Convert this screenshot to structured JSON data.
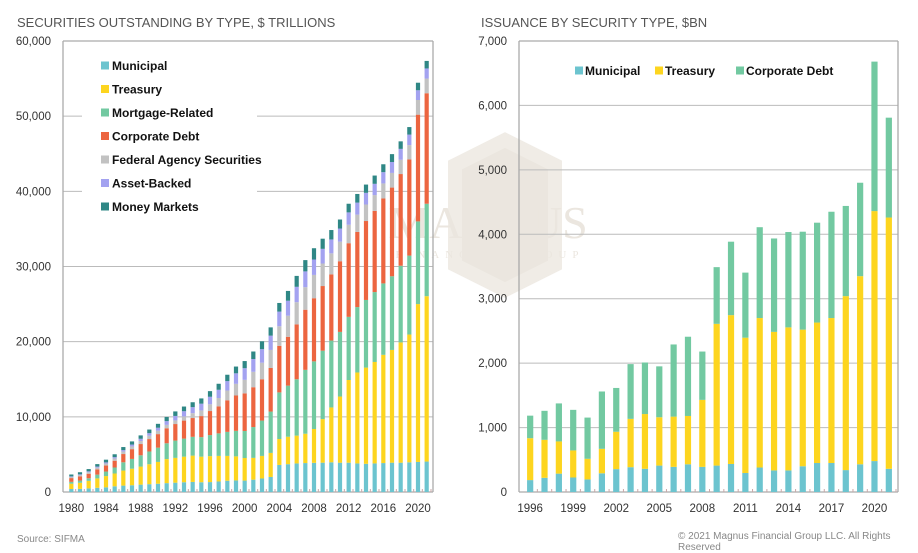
{
  "footer": {
    "source": "Source: SIFMA",
    "copyright": "© 2021 Magnus Financial Group LLC. All Rights Reserved"
  },
  "watermark": {
    "name": "MAGNUS",
    "sub": "FINANCIAL GROUP"
  },
  "colors": {
    "municipal": "#6cc4cf",
    "treasury": "#fdd51f",
    "mortgage": "#72c9a1",
    "corporate": "#ec6540",
    "agency": "#c2c2c2",
    "asset_backed": "#a3a2f0",
    "money_markets": "#2f8785",
    "axis": "#aaaaaa",
    "grid": "#bbbbbb"
  },
  "chart_data": [
    {
      "type": "bar",
      "stacked": true,
      "title": "SECURITIES OUTSTANDING BY TYPE, $ TRILLIONS",
      "xlabel": "",
      "ylabel": "",
      "ylim": [
        0,
        60000
      ],
      "yticks": [
        0,
        10000,
        20000,
        30000,
        40000,
        50000,
        60000
      ],
      "ytick_labels": [
        "0",
        "10,000",
        "20,000",
        "30,000",
        "40,000",
        "50,000",
        "60,000"
      ],
      "xtick_labels": [
        "1980",
        "1984",
        "1988",
        "1992",
        "1996",
        "2000",
        "2004",
        "2008",
        "2012",
        "2016",
        "2020"
      ],
      "grid": true,
      "legend_position": "top-left",
      "categories": [
        "1980",
        "1981",
        "1982",
        "1983",
        "1984",
        "1985",
        "1986",
        "1987",
        "1988",
        "1989",
        "1990",
        "1991",
        "1992",
        "1993",
        "1994",
        "1995",
        "1996",
        "1997",
        "1998",
        "1999",
        "2000",
        "2001",
        "2002",
        "2003",
        "2004",
        "2005",
        "2006",
        "2007",
        "2008",
        "2009",
        "2010",
        "2011",
        "2012",
        "2013",
        "2014",
        "2015",
        "2016",
        "2017",
        "2018",
        "2019",
        "2020",
        "2021"
      ],
      "series": [
        {
          "name": "Municipal",
          "color_key": "municipal",
          "values": [
            400,
            420,
            480,
            560,
            620,
            760,
            850,
            900,
            980,
            1040,
            1100,
            1180,
            1240,
            1300,
            1340,
            1300,
            1320,
            1400,
            1500,
            1540,
            1520,
            1640,
            1800,
            2000,
            3600,
            3700,
            3800,
            3850,
            3880,
            3900,
            3950,
            3900,
            3900,
            3800,
            3750,
            3800,
            3850,
            3900,
            3900,
            3950,
            4000,
            4050
          ]
        },
        {
          "name": "Treasury",
          "color_key": "treasury",
          "values": [
            700,
            800,
            1000,
            1250,
            1500,
            1700,
            2000,
            2200,
            2400,
            2650,
            2900,
            3200,
            3300,
            3400,
            3500,
            3400,
            3450,
            3400,
            3300,
            3200,
            3000,
            2900,
            3000,
            3200,
            3450,
            3650,
            3700,
            3900,
            4500,
            5800,
            7300,
            8800,
            11000,
            12100,
            12800,
            13500,
            14400,
            15000,
            16000,
            17000,
            21000,
            22000
          ]
        },
        {
          "name": "Mortgage-Related",
          "color_key": "mortgage",
          "values": [
            250,
            300,
            350,
            500,
            600,
            800,
            1100,
            1300,
            1500,
            1700,
            1900,
            2100,
            2300,
            2400,
            2500,
            2600,
            2800,
            3000,
            3200,
            3400,
            3600,
            4100,
            4700,
            5500,
            6200,
            6800,
            7500,
            8500,
            9000,
            9100,
            8900,
            8600,
            8400,
            8700,
            9000,
            9300,
            9500,
            9800,
            10200,
            10500,
            11000,
            12300
          ]
        },
        {
          "name": "Corporate Debt",
          "color_key": "corporate",
          "values": [
            500,
            550,
            600,
            700,
            800,
            900,
            1100,
            1300,
            1500,
            1650,
            1800,
            2000,
            2200,
            2400,
            2500,
            2800,
            3200,
            3600,
            4200,
            4700,
            5000,
            5300,
            5500,
            5800,
            6200,
            6500,
            7300,
            8000,
            8400,
            8600,
            8800,
            9400,
            9800,
            10000,
            10500,
            10800,
            11300,
            11800,
            12200,
            12800,
            14200,
            14700
          ]
        },
        {
          "name": "Federal Agency Securities",
          "color_key": "agency",
          "values": [
            150,
            180,
            200,
            230,
            270,
            300,
            330,
            360,
            400,
            440,
            450,
            450,
            480,
            550,
            650,
            750,
            900,
            1100,
            1300,
            1550,
            1800,
            2050,
            2200,
            2400,
            2600,
            2800,
            2950,
            3000,
            3100,
            3000,
            2800,
            2600,
            2450,
            2300,
            2200,
            2100,
            2000,
            1950,
            1900,
            1900,
            1950,
            1950
          ]
        },
        {
          "name": "Asset-Backed",
          "color_key": "asset_backed",
          "values": [
            80,
            100,
            120,
            140,
            150,
            180,
            200,
            250,
            300,
            350,
            400,
            500,
            600,
            700,
            800,
            900,
            1000,
            1100,
            1250,
            1400,
            1550,
            1700,
            1800,
            1900,
            1950,
            2000,
            2050,
            2100,
            2050,
            1950,
            1850,
            1750,
            1650,
            1600,
            1550,
            1500,
            1500,
            1450,
            1450,
            1400,
            1300,
            1350
          ]
        },
        {
          "name": "Money Markets",
          "color_key": "money_markets",
          "values": [
            250,
            280,
            300,
            330,
            360,
            380,
            400,
            420,
            450,
            480,
            520,
            560,
            600,
            620,
            650,
            700,
            750,
            800,
            850,
            900,
            950,
            1000,
            1050,
            1100,
            1150,
            1300,
            1450,
            1500,
            1500,
            1350,
            1250,
            1200,
            1150,
            1150,
            1100,
            1100,
            1050,
            1050,
            1000,
            1000,
            1000,
            1000
          ]
        }
      ]
    },
    {
      "type": "bar",
      "stacked": true,
      "title": "ISSUANCE BY SECURITY TYPE, $BN",
      "xlabel": "",
      "ylabel": "",
      "ylim": [
        0,
        7000
      ],
      "yticks": [
        0,
        1000,
        2000,
        3000,
        4000,
        5000,
        6000,
        7000
      ],
      "ytick_labels": [
        "0",
        "1,000",
        "2,000",
        "3,000",
        "4,000",
        "5,000",
        "6,000",
        "7,000"
      ],
      "xtick_labels": [
        "1996",
        "1999",
        "2002",
        "2005",
        "2008",
        "2011",
        "2014",
        "2017",
        "2020"
      ],
      "grid": true,
      "legend_position": "top-center",
      "categories": [
        "1996",
        "1997",
        "1998",
        "1999",
        "2000",
        "2001",
        "2002",
        "2003",
        "2004",
        "2005",
        "2006",
        "2007",
        "2008",
        "2009",
        "2010",
        "2011",
        "2012",
        "2013",
        "2014",
        "2015",
        "2016",
        "2017",
        "2018",
        "2019",
        "2020",
        "2021"
      ],
      "series": [
        {
          "name": "Municipal",
          "color_key": "municipal",
          "values": [
            185,
            220,
            285,
            225,
            195,
            290,
            355,
            385,
            360,
            410,
            390,
            430,
            390,
            410,
            435,
            295,
            380,
            335,
            335,
            400,
            450,
            450,
            340,
            430,
            480,
            360
          ]
        },
        {
          "name": "Treasury",
          "color_key": "treasury",
          "values": [
            650,
            590,
            500,
            420,
            320,
            380,
            580,
            750,
            850,
            750,
            780,
            750,
            1040,
            2200,
            2310,
            2100,
            2320,
            2150,
            2220,
            2120,
            2180,
            2250,
            2700,
            2920,
            3880,
            3900
          ]
        },
        {
          "name": "Corporate Debt",
          "color_key": "corporate_debt_issuance",
          "values": [
            350,
            450,
            590,
            630,
            640,
            890,
            680,
            850,
            800,
            790,
            1120,
            1230,
            750,
            880,
            1140,
            1010,
            1410,
            1450,
            1480,
            1520,
            1550,
            1650,
            1400,
            1450,
            2320,
            1550
          ]
        }
      ]
    }
  ]
}
